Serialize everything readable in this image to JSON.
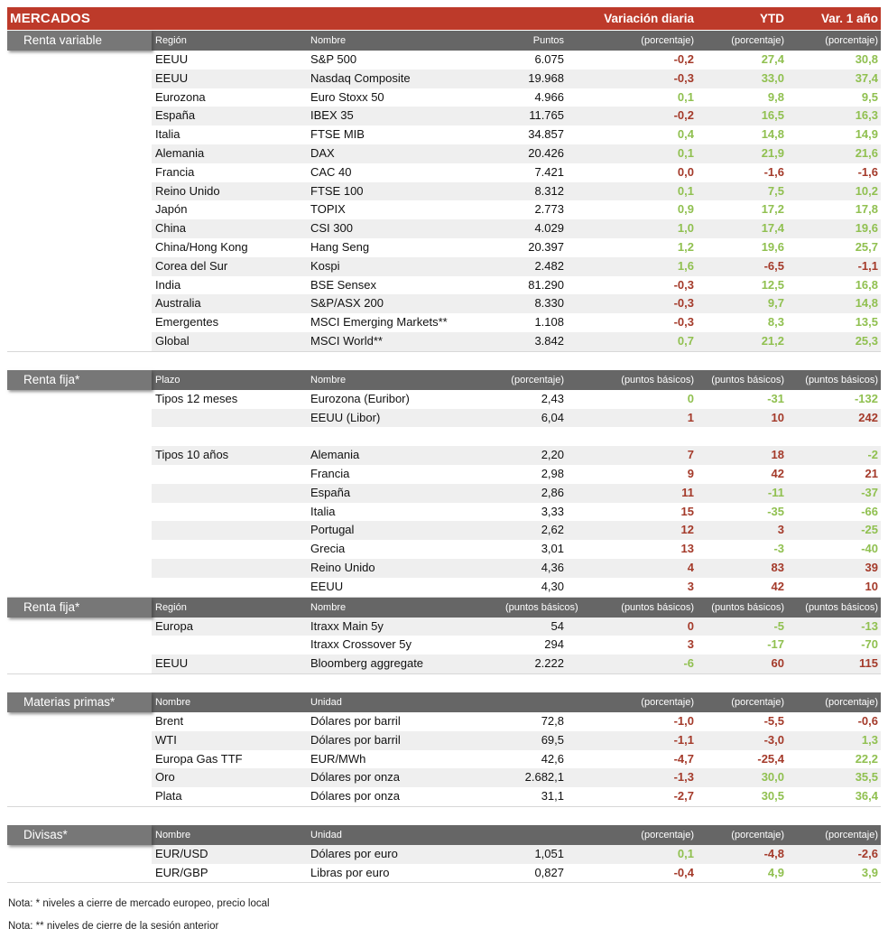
{
  "colors": {
    "accent_red": "#bd3a2a",
    "header_gray": "#666666",
    "label_gray": "#777777",
    "row_shade": "#efefef",
    "positive_green": "#90c050",
    "negative_red": "#a43a2a"
  },
  "title_bar": {
    "title": "MERCADOS",
    "columns": [
      "Variación diaria",
      "YTD",
      "Var. 1 año"
    ]
  },
  "sections": [
    {
      "label": "Renta variable",
      "headers": [
        "Región",
        "Nombre",
        "Puntos",
        "(porcentaje)",
        "(porcentaje)",
        "(porcentaje)"
      ],
      "rows": [
        {
          "c1": "EEUU",
          "c2": "S&P 500",
          "c3": "6.075",
          "v": [
            [
              "-0,2",
              "r"
            ],
            [
              "27,4",
              "g"
            ],
            [
              "30,8",
              "g"
            ]
          ]
        },
        {
          "c1": "EEUU",
          "c2": "Nasdaq Composite",
          "c3": "19.968",
          "v": [
            [
              "-0,3",
              "r"
            ],
            [
              "33,0",
              "g"
            ],
            [
              "37,4",
              "g"
            ]
          ]
        },
        {
          "c1": "Eurozona",
          "c2": "Euro Stoxx 50",
          "c3": "4.966",
          "v": [
            [
              "0,1",
              "g"
            ],
            [
              "9,8",
              "g"
            ],
            [
              "9,5",
              "g"
            ]
          ]
        },
        {
          "c1": "España",
          "c2": "IBEX 35",
          "c3": "11.765",
          "v": [
            [
              "-0,2",
              "r"
            ],
            [
              "16,5",
              "g"
            ],
            [
              "16,3",
              "g"
            ]
          ]
        },
        {
          "c1": "Italia",
          "c2": "FTSE MIB",
          "c3": "34.857",
          "v": [
            [
              "0,4",
              "g"
            ],
            [
              "14,8",
              "g"
            ],
            [
              "14,9",
              "g"
            ]
          ]
        },
        {
          "c1": "Alemania",
          "c2": "DAX",
          "c3": "20.426",
          "v": [
            [
              "0,1",
              "g"
            ],
            [
              "21,9",
              "g"
            ],
            [
              "21,6",
              "g"
            ]
          ]
        },
        {
          "c1": "Francia",
          "c2": "CAC 40",
          "c3": "7.421",
          "v": [
            [
              "0,0",
              "r"
            ],
            [
              "-1,6",
              "r"
            ],
            [
              "-1,6",
              "r"
            ]
          ]
        },
        {
          "c1": "Reino Unido",
          "c2": "FTSE 100",
          "c3": "8.312",
          "v": [
            [
              "0,1",
              "g"
            ],
            [
              "7,5",
              "g"
            ],
            [
              "10,2",
              "g"
            ]
          ]
        },
        {
          "c1": "Japón",
          "c2": "TOPIX",
          "c3": "2.773",
          "v": [
            [
              "0,9",
              "g"
            ],
            [
              "17,2",
              "g"
            ],
            [
              "17,8",
              "g"
            ]
          ]
        },
        {
          "c1": "China",
          "c2": "CSI 300",
          "c3": "4.029",
          "v": [
            [
              "1,0",
              "g"
            ],
            [
              "17,4",
              "g"
            ],
            [
              "19,6",
              "g"
            ]
          ]
        },
        {
          "c1": "China/Hong Kong",
          "c2": "Hang Seng",
          "c3": "20.397",
          "v": [
            [
              "1,2",
              "g"
            ],
            [
              "19,6",
              "g"
            ],
            [
              "25,7",
              "g"
            ]
          ]
        },
        {
          "c1": "Corea del Sur",
          "c2": "Kospi",
          "c3": "2.482",
          "v": [
            [
              "1,6",
              "g"
            ],
            [
              "-6,5",
              "r"
            ],
            [
              "-1,1",
              "r"
            ]
          ]
        },
        {
          "c1": "India",
          "c2": "BSE Sensex",
          "c3": "81.290",
          "v": [
            [
              "-0,3",
              "r"
            ],
            [
              "12,5",
              "g"
            ],
            [
              "16,8",
              "g"
            ]
          ]
        },
        {
          "c1": "Australia",
          "c2": "S&P/ASX 200",
          "c3": "8.330",
          "v": [
            [
              "-0,3",
              "r"
            ],
            [
              "9,7",
              "g"
            ],
            [
              "14,8",
              "g"
            ]
          ]
        },
        {
          "c1": "Emergentes",
          "c2": "MSCI Emerging Markets**",
          "c3": "1.108",
          "v": [
            [
              "-0,3",
              "r"
            ],
            [
              "8,3",
              "g"
            ],
            [
              "13,5",
              "g"
            ]
          ]
        },
        {
          "c1": "Global",
          "c2": "MSCI World**",
          "c3": "3.842",
          "v": [
            [
              "0,7",
              "g"
            ],
            [
              "21,2",
              "g"
            ],
            [
              "25,3",
              "g"
            ]
          ]
        }
      ]
    },
    {
      "label": "Renta fija*",
      "headers": [
        "Plazo",
        "Nombre",
        "(porcentaje)",
        "(puntos básicos)",
        "(puntos básicos)",
        "(puntos básicos)"
      ],
      "rows": [
        {
          "c1": "Tipos 12 meses",
          "c2": "Eurozona (Euribor)",
          "c3": "2,43",
          "v": [
            [
              "0",
              "g"
            ],
            [
              "-31",
              "g"
            ],
            [
              "-132",
              "g"
            ]
          ]
        },
        {
          "c1": "",
          "c2": "EEUU (Libor)",
          "c3": "6,04",
          "v": [
            [
              "1",
              "r"
            ],
            [
              "10",
              "r"
            ],
            [
              "242",
              "r"
            ]
          ]
        },
        {
          "spacer": true
        },
        {
          "c1": "Tipos 10 años",
          "c2": "Alemania",
          "c3": "2,20",
          "v": [
            [
              "7",
              "r"
            ],
            [
              "18",
              "r"
            ],
            [
              "-2",
              "g"
            ]
          ]
        },
        {
          "c1": "",
          "c2": "Francia",
          "c3": "2,98",
          "v": [
            [
              "9",
              "r"
            ],
            [
              "42",
              "r"
            ],
            [
              "21",
              "r"
            ]
          ]
        },
        {
          "c1": "",
          "c2": "España",
          "c3": "2,86",
          "v": [
            [
              "11",
              "r"
            ],
            [
              "-11",
              "g"
            ],
            [
              "-37",
              "g"
            ]
          ]
        },
        {
          "c1": "",
          "c2": "Italia",
          "c3": "3,33",
          "v": [
            [
              "15",
              "r"
            ],
            [
              "-35",
              "g"
            ],
            [
              "-66",
              "g"
            ]
          ]
        },
        {
          "c1": "",
          "c2": "Portugal",
          "c3": "2,62",
          "v": [
            [
              "12",
              "r"
            ],
            [
              "3",
              "r"
            ],
            [
              "-25",
              "g"
            ]
          ]
        },
        {
          "c1": "",
          "c2": "Grecia",
          "c3": "3,01",
          "v": [
            [
              "13",
              "r"
            ],
            [
              "-3",
              "g"
            ],
            [
              "-40",
              "g"
            ]
          ]
        },
        {
          "c1": "",
          "c2": "Reino Unido",
          "c3": "4,36",
          "v": [
            [
              "4",
              "r"
            ],
            [
              "83",
              "r"
            ],
            [
              "39",
              "r"
            ]
          ]
        },
        {
          "c1": "",
          "c2": "EEUU",
          "c3": "4,30",
          "v": [
            [
              "3",
              "r"
            ],
            [
              "42",
              "r"
            ],
            [
              "10",
              "r"
            ]
          ]
        }
      ]
    },
    {
      "label": "Renta fija*",
      "headers": [
        "Región",
        "Nombre",
        "(puntos básicos)",
        "(puntos básicos)",
        "(puntos básicos)",
        "(puntos básicos)"
      ],
      "rows": [
        {
          "c1": "Europa",
          "c2": "Itraxx Main 5y",
          "c3": "54",
          "v": [
            [
              "0",
              "r"
            ],
            [
              "-5",
              "g"
            ],
            [
              "-13",
              "g"
            ]
          ]
        },
        {
          "c1": "",
          "c2": "Itraxx Crossover 5y",
          "c3": "294",
          "v": [
            [
              "3",
              "r"
            ],
            [
              "-17",
              "g"
            ],
            [
              "-70",
              "g"
            ]
          ]
        },
        {
          "c1": "EEUU",
          "c2": "Bloomberg aggregate",
          "c3": "2.222",
          "v": [
            [
              "-6",
              "g"
            ],
            [
              "60",
              "r"
            ],
            [
              "115",
              "r"
            ]
          ]
        }
      ]
    },
    {
      "label": "Materias primas*",
      "headers": [
        "Nombre",
        "Unidad",
        "",
        "(porcentaje)",
        "(porcentaje)",
        "(porcentaje)"
      ],
      "rows": [
        {
          "c1": "Brent",
          "c2": "Dólares por barril",
          "c3": "72,8",
          "v": [
            [
              "-1,0",
              "r"
            ],
            [
              "-5,5",
              "r"
            ],
            [
              "-0,6",
              "r"
            ]
          ]
        },
        {
          "c1": "WTI",
          "c2": "Dólares por barril",
          "c3": "69,5",
          "v": [
            [
              "-1,1",
              "r"
            ],
            [
              "-3,0",
              "r"
            ],
            [
              "1,3",
              "g"
            ]
          ]
        },
        {
          "c1": "Europa Gas TTF",
          "c2": "EUR/MWh",
          "c3": "42,6",
          "v": [
            [
              "-4,7",
              "r"
            ],
            [
              "-25,4",
              "r"
            ],
            [
              "22,2",
              "g"
            ]
          ]
        },
        {
          "c1": "Oro",
          "c2": "Dólares por onza",
          "c3": "2.682,1",
          "v": [
            [
              "-1,3",
              "r"
            ],
            [
              "30,0",
              "g"
            ],
            [
              "35,5",
              "g"
            ]
          ]
        },
        {
          "c1": "Plata",
          "c2": "Dólares por onza",
          "c3": "31,1",
          "v": [
            [
              "-2,7",
              "r"
            ],
            [
              "30,5",
              "g"
            ],
            [
              "36,4",
              "g"
            ]
          ]
        }
      ]
    },
    {
      "label": "Divisas*",
      "headers": [
        "Nombre",
        "Unidad",
        "",
        "(porcentaje)",
        "(porcentaje)",
        "(porcentaje)"
      ],
      "rows": [
        {
          "c1": "EUR/USD",
          "c2": "Dólares por euro",
          "c3": "1,051",
          "v": [
            [
              "0,1",
              "g"
            ],
            [
              "-4,8",
              "r"
            ],
            [
              "-2,6",
              "r"
            ]
          ]
        },
        {
          "c1": "EUR/GBP",
          "c2": "Libras por euro",
          "c3": "0,827",
          "v": [
            [
              "-0,4",
              "r"
            ],
            [
              "4,9",
              "g"
            ],
            [
              "3,9",
              "g"
            ]
          ]
        }
      ]
    }
  ],
  "notes": [
    "Nota: * niveles a cierre de mercado europeo, precio local",
    "Nota: ** niveles de cierre de la sesión anterior"
  ]
}
